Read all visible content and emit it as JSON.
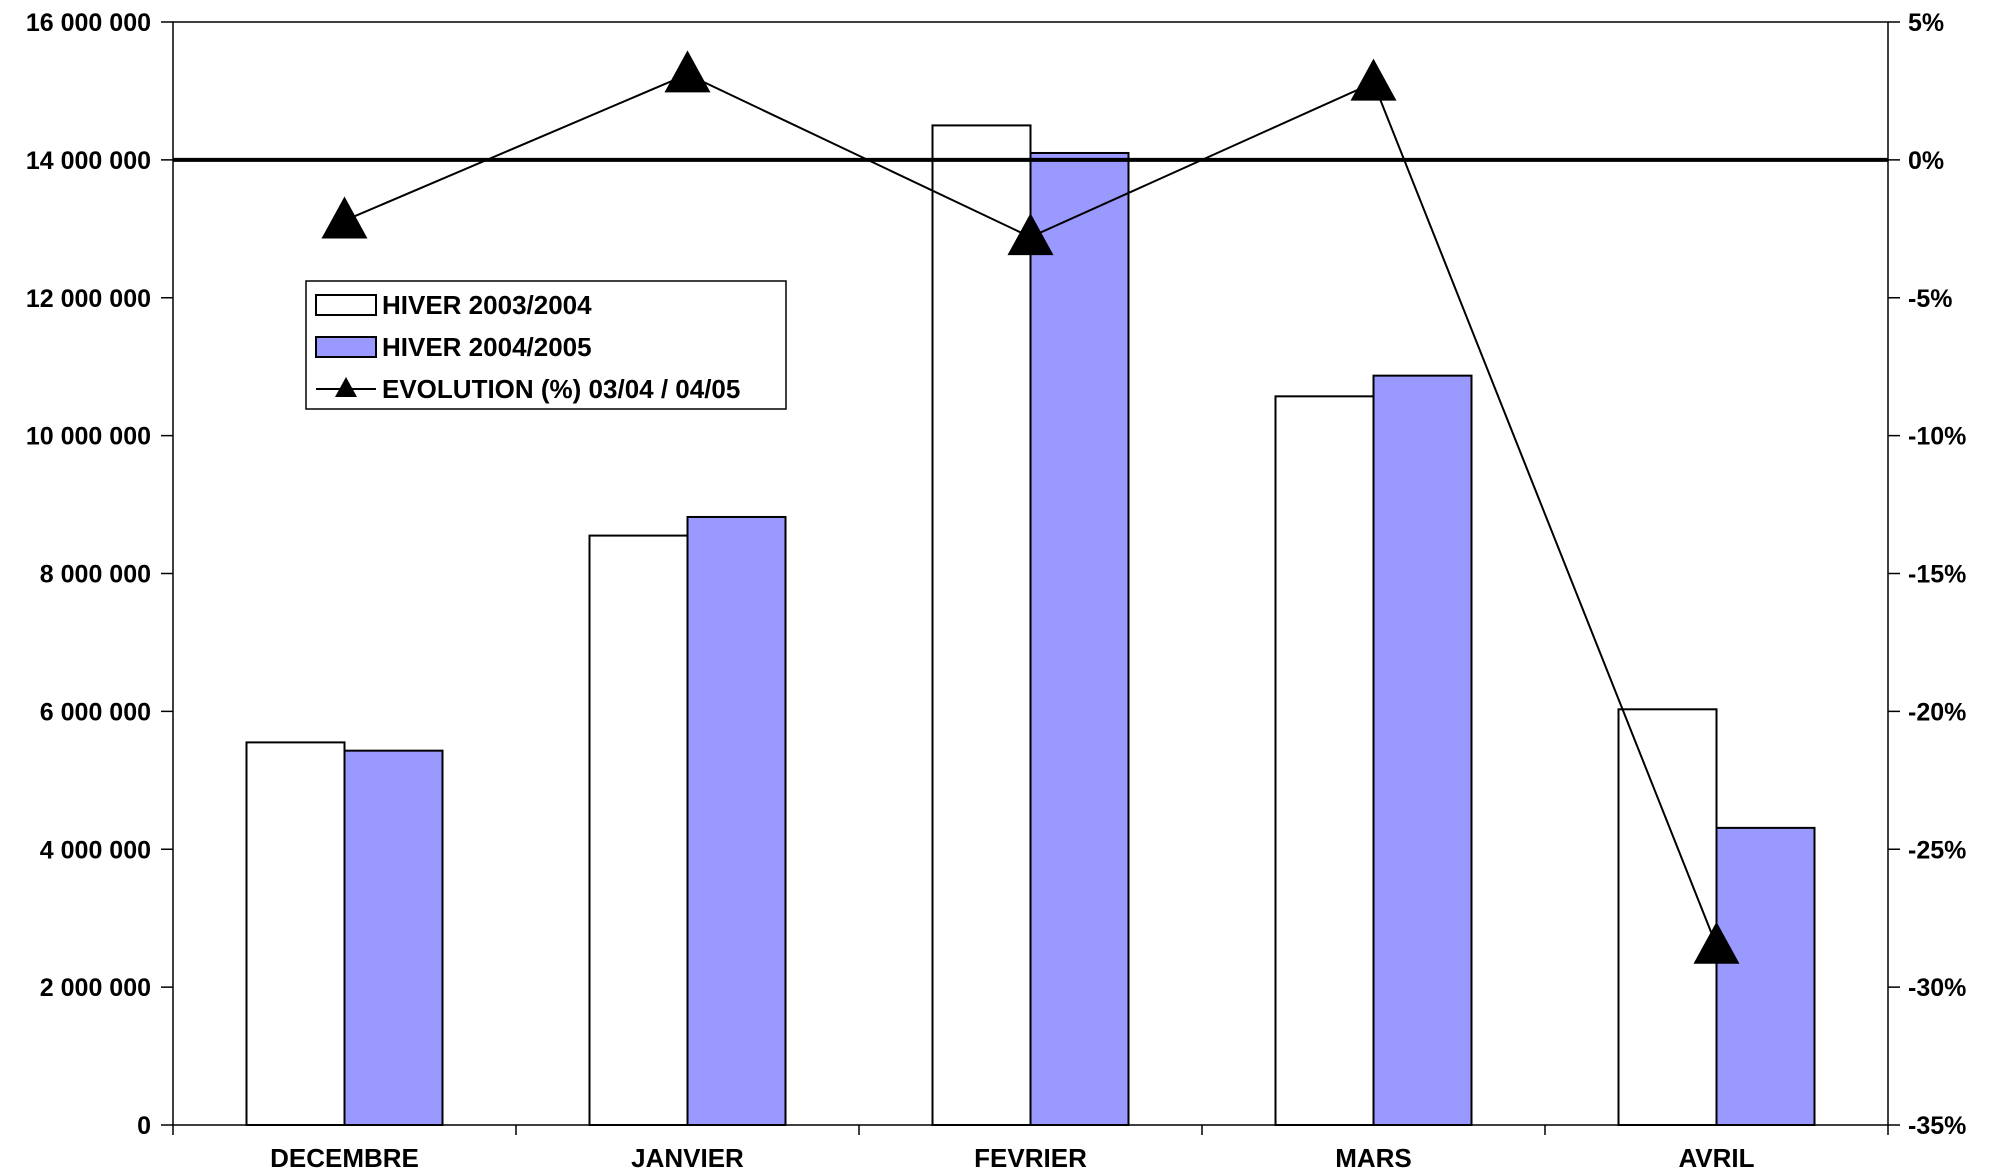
{
  "chart_data": {
    "type": "bar",
    "categories": [
      "DECEMBRE",
      "JANVIER",
      "FEVRIER",
      "MARS",
      "AVRIL"
    ],
    "series": [
      {
        "name": "HIVER 2003/2004",
        "type": "bar",
        "axis": "left",
        "color": "#FFFFFF",
        "values": [
          5550000,
          8550000,
          14500000,
          10570000,
          6030000
        ]
      },
      {
        "name": "HIVER 2004/2005",
        "type": "bar",
        "axis": "left",
        "color": "#9999FF",
        "values": [
          5430000,
          8820000,
          14100000,
          10870000,
          4310000
        ]
      },
      {
        "name": "EVOLUTION (%) 03/04 /  04/05",
        "type": "line",
        "axis": "right",
        "color": "#000000",
        "marker": "triangle",
        "values": [
          -2.2,
          3.1,
          -2.8,
          2.8,
          -28.5
        ]
      }
    ],
    "y_left": {
      "min": 0,
      "max": 16000000,
      "step": 2000000,
      "tick_labels": [
        "0",
        "2 000 000",
        "4 000 000",
        "6 000 000",
        "8 000 000",
        "10 000 000",
        "12 000 000",
        "14 000 000",
        "16 000 000"
      ]
    },
    "y_right": {
      "min": -35,
      "max": 5,
      "step": 5,
      "tick_labels": [
        "-35%",
        "-30%",
        "-25%",
        "-20%",
        "-15%",
        "-10%",
        "-5%",
        "0%",
        "5%"
      ]
    },
    "reference_line": {
      "axis": "right",
      "value": 0
    },
    "legend": {
      "position": "top-left",
      "entries": [
        "HIVER 2003/2004",
        "HIVER 2004/2005",
        "EVOLUTION (%) 03/04 /  04/05"
      ]
    },
    "grid": false,
    "title": "",
    "xlabel": "",
    "ylabel": ""
  }
}
